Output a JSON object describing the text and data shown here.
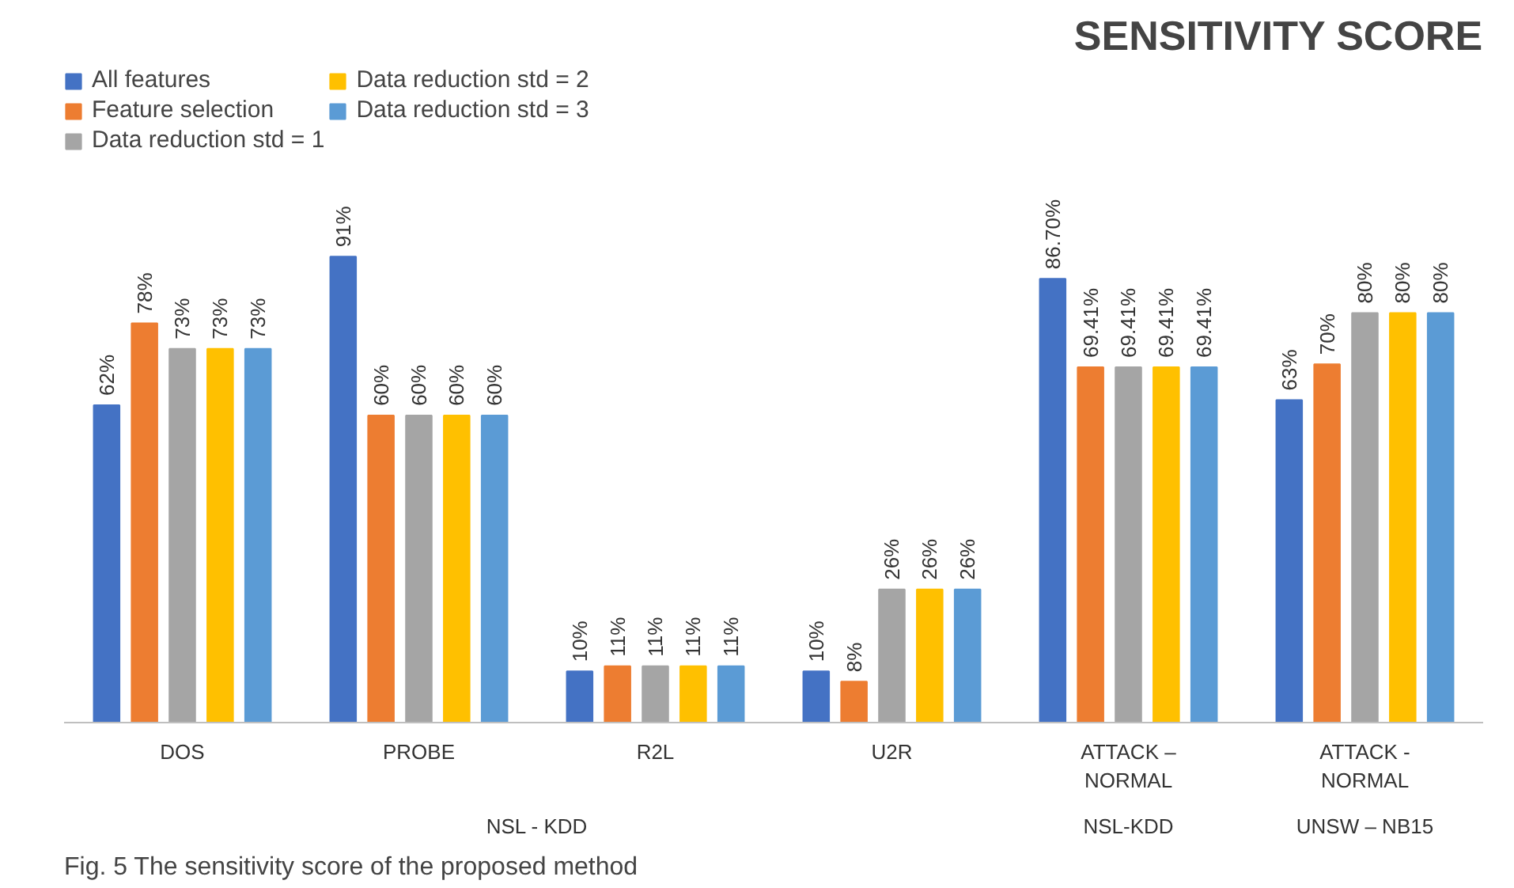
{
  "chart_data": {
    "type": "bar",
    "title": "SENSITIVITY SCORE",
    "categories": [
      "DOS",
      "PROBE",
      "R2L",
      "U2R",
      "ATTACK – NORMAL",
      "ATTACK - NORMAL"
    ],
    "series": [
      {
        "name": "All features",
        "color": "#4472c4",
        "values": [
          62,
          91,
          10,
          10,
          86.7,
          63
        ],
        "value_labels": [
          "62%",
          "91%",
          "10%",
          "10%",
          "86.70%",
          "63%"
        ]
      },
      {
        "name": "Feature selection",
        "color": "#ed7d31",
        "values": [
          78,
          60,
          11,
          8,
          69.41,
          70
        ],
        "value_labels": [
          "78%",
          "60%",
          "11%",
          "8%",
          "69.41%",
          "70%"
        ]
      },
      {
        "name": "Data reduction std = 1",
        "color": "#a5a5a5",
        "values": [
          73,
          60,
          11,
          26,
          69.41,
          80
        ],
        "value_labels": [
          "73%",
          "60%",
          "11%",
          "26%",
          "69.41%",
          "80%"
        ]
      },
      {
        "name": "Data reduction std = 2",
        "color": "#ffc000",
        "values": [
          73,
          60,
          11,
          26,
          69.41,
          80
        ],
        "value_labels": [
          "73%",
          "60%",
          "11%",
          "26%",
          "69.41%",
          "80%"
        ]
      },
      {
        "name": "Data reduction std = 3",
        "color": "#5b9bd5",
        "values": [
          73,
          60,
          11,
          26,
          69.41,
          80
        ],
        "value_labels": [
          "73%",
          "60%",
          "11%",
          "26%",
          "69.41%",
          "80%"
        ]
      }
    ],
    "annotations": [
      "NSL - KDD",
      "NSL-KDD",
      "UNSW – NB15",
      "Fig. 5  The sensitivity score of the proposed method"
    ],
    "legend": "top left"
  }
}
